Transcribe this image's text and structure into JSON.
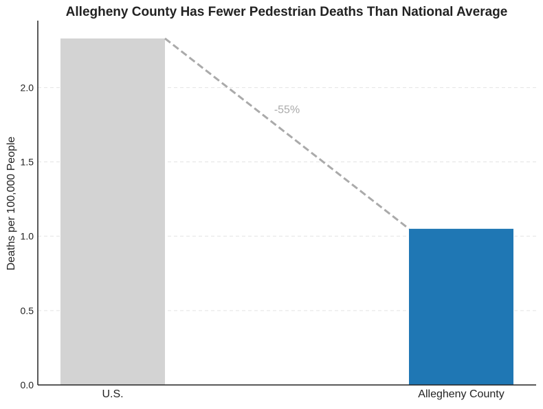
{
  "chart_data": {
    "type": "bar",
    "title": "Allegheny County Has Fewer Pedestrian Deaths Than National Average",
    "xlabel": "",
    "ylabel": "Deaths per 100,000 People",
    "categories": [
      "U.S.",
      "Allegheny County"
    ],
    "values": [
      2.33,
      1.05
    ],
    "colors": [
      "#d3d3d3",
      "#1f77b4"
    ],
    "ylim": [
      0,
      2.45
    ],
    "yticks": [
      0.0,
      0.5,
      1.0,
      1.5,
      2.0
    ],
    "ytick_labels": [
      "0.0",
      "0.5",
      "1.0",
      "1.5",
      "2.0"
    ],
    "grid": "horizontal dashed",
    "annotation": {
      "text": "-55%",
      "color": "#aaaaaa",
      "connector": "dashed line between bar tops"
    }
  }
}
